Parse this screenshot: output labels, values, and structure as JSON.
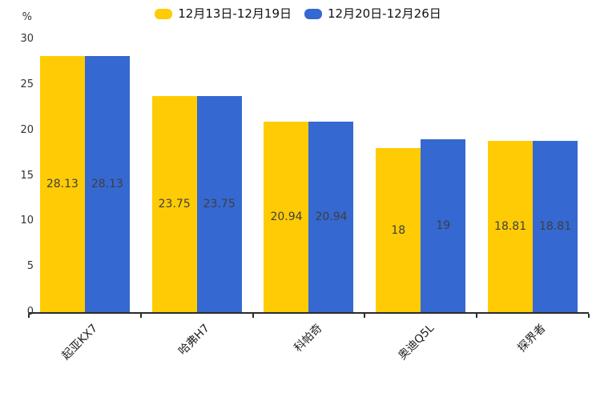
{
  "legend": {
    "items": [
      {
        "label": "12月13日-12月19日",
        "color": "#FFCB05"
      },
      {
        "label": "12月20日-12月26日",
        "color": "#3568D0"
      }
    ]
  },
  "chart_data": {
    "type": "bar",
    "title": "",
    "unit_label": "%",
    "xlabel": "",
    "ylabel": "%",
    "categories": [
      "起亚KX7",
      "哈弗H7",
      "科帕奇",
      "奥迪Q5L",
      "探界者"
    ],
    "series": [
      {
        "name": "12月13日-12月19日",
        "color": "#FFCB05",
        "values": [
          28.13,
          23.75,
          20.94,
          18,
          18.81
        ]
      },
      {
        "name": "12月20日-12月26日",
        "color": "#3568D0",
        "values": [
          28.13,
          23.75,
          20.94,
          19,
          18.81
        ]
      }
    ],
    "ylim": [
      0,
      30
    ],
    "y_ticks": [
      0,
      5,
      10,
      15,
      20,
      25,
      30
    ],
    "grid": false,
    "legend_position": "top",
    "value_labels_shown": true
  }
}
